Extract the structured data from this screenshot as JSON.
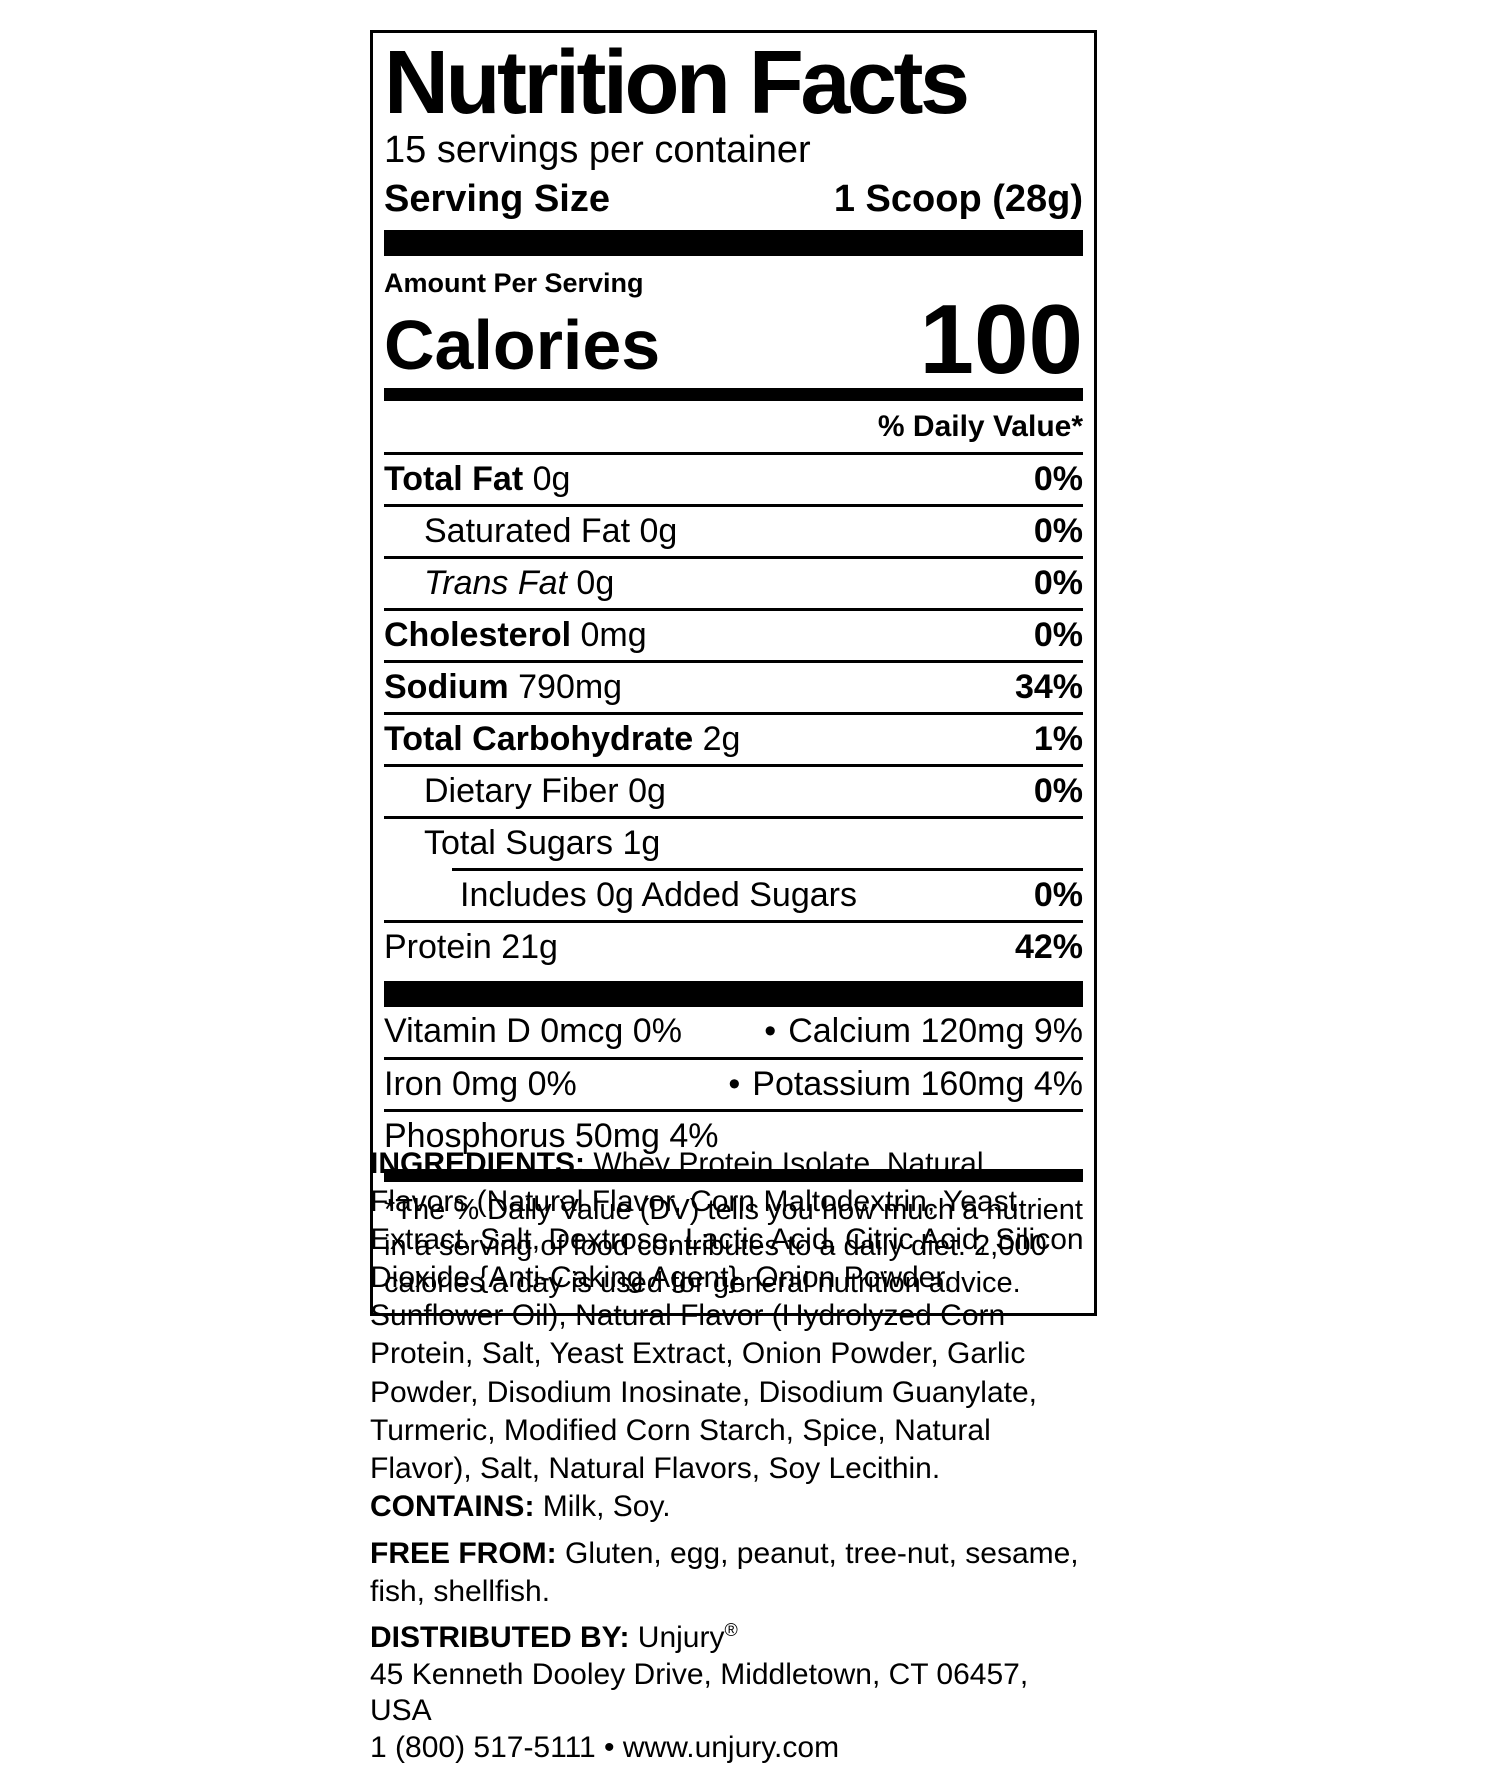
{
  "label": {
    "title": "Nutrition Facts",
    "servings_per_container": "15 servings per container",
    "serving_size_label": "Serving Size",
    "serving_size_value": "1 Scoop (28g)",
    "amount_per_serving": "Amount Per Serving",
    "calories_label": "Calories",
    "calories_value": "100",
    "daily_value_header": "% Daily Value*",
    "rows": [
      {
        "name": "Total Fat",
        "amount": "0g",
        "dv": "0%"
      },
      {
        "name": "Saturated Fat",
        "amount": "0g",
        "dv": "0%"
      },
      {
        "name": "Trans Fat",
        "amount": "0g",
        "dv": "0%"
      },
      {
        "name": "Cholesterol",
        "amount": "0mg",
        "dv": "0%"
      },
      {
        "name": "Sodium",
        "amount": "790mg",
        "dv": "34%"
      },
      {
        "name": "Total Carbohydrate",
        "amount": "2g",
        "dv": "1%"
      },
      {
        "name": "Dietary Fiber",
        "amount": "0g",
        "dv": "0%"
      },
      {
        "name": "Total Sugars",
        "amount": "1g",
        "dv": ""
      },
      {
        "name": "Includes 0g Added Sugars",
        "amount": "",
        "dv": "0%"
      },
      {
        "name": "Protein",
        "amount": "21g",
        "dv": "42%"
      }
    ],
    "micronutrients": [
      {
        "left": "Vitamin D 0mcg 0%",
        "bullet": "•",
        "right": "Calcium 120mg 9%"
      },
      {
        "left": "Iron 0mg 0%",
        "bullet": "•",
        "right": "Potassium 160mg 4%"
      },
      {
        "left": "Phosphorus 50mg 4%",
        "bullet": "",
        "right": ""
      }
    ],
    "footnote": "*The % Daily Value (DV) tells you how much a nutrient in a serving of food contributes to a daily diet. 2,000 calories a day is used for general nutrition advice."
  },
  "ingredients": {
    "label": "INGREDIENTS:",
    "text": " Whey Protein Isolate, Natural Flavors (Natural Flavor, Corn Maltodextrin, Yeast Extract, Salt, Dextrose, Lactic Acid, Citric Acid, Silicon Dioxide {Anti-Caking Agent}, Onion Powder, Sunflower Oil), Natural Flavor (Hydrolyzed Corn Protein, Salt, Yeast Extract, Onion Powder, Garlic Powder, Disodium Inosinate, Disodium Guanylate, Turmeric, Modified Corn Starch, Spice, Natural Flavor), Salt, Natural Flavors, Soy Lecithin. ",
    "contains_label": "CONTAINS:",
    "contains_text": " Milk, Soy."
  },
  "free_from": {
    "label": "FREE FROM:",
    "text": " Gluten, egg, peanut, tree-nut, sesame, fish, shellfish."
  },
  "distributor": {
    "label": "DISTRIBUTED BY:",
    "name": " Unjury",
    "registered_mark": "®",
    "address": "45 Kenneth Dooley Drive, Middletown, CT 06457, USA",
    "phone_line": "1 (800) 517-5111 • www.unjury.com"
  }
}
